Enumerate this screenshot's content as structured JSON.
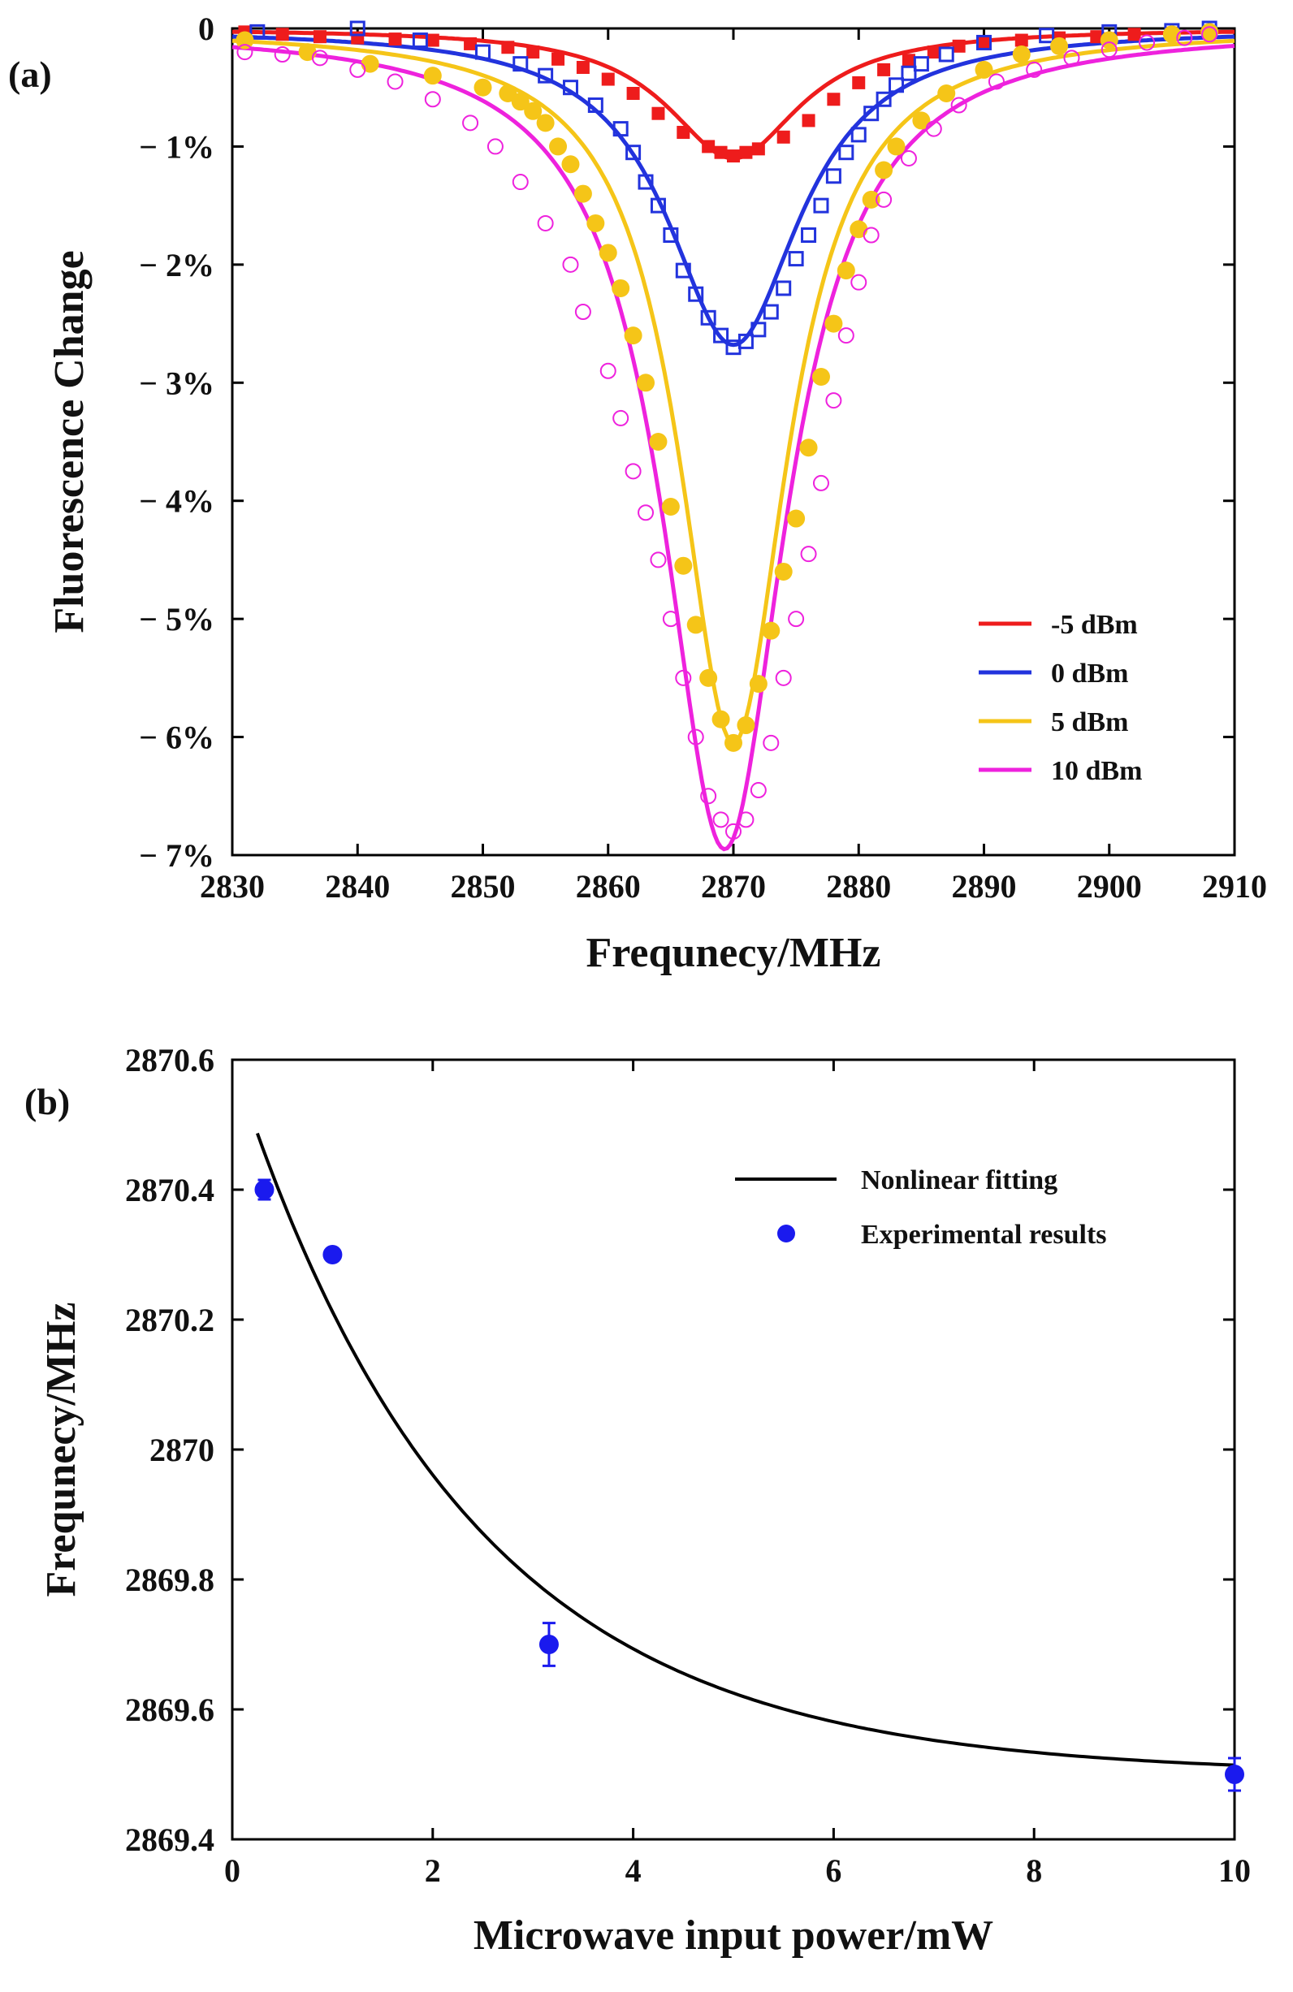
{
  "chart_data": [
    {
      "type": "line",
      "panel_label": "(a)",
      "title": "",
      "xlabel": "Frequnecy/MHz",
      "ylabel": "Fluorescence Change",
      "xlim": [
        2830,
        2910
      ],
      "ylim": [
        -7,
        0
      ],
      "xticks": [
        2830,
        2840,
        2850,
        2860,
        2870,
        2880,
        2890,
        2900,
        2910
      ],
      "yticks": [
        0,
        -1,
        -2,
        -3,
        -4,
        -5,
        -6,
        -7
      ],
      "ytick_labels": [
        "0",
        "− 1%",
        "− 2%",
        "− 3%",
        "− 4%",
        "− 5%",
        "− 6%",
        "− 7%"
      ],
      "legend_position": "bottom-right",
      "series": [
        {
          "name": "-5 dBm",
          "color": "#ee1c1c",
          "marker": "filled-square",
          "fit": {
            "center": 2870,
            "depth": -1.1,
            "hwhm": 6.5,
            "offset": 0.0
          },
          "points": [
            [
              2831,
              -0.03
            ],
            [
              2834,
              -0.05
            ],
            [
              2837,
              -0.07
            ],
            [
              2840,
              -0.08
            ],
            [
              2843,
              -0.09
            ],
            [
              2846,
              -0.1
            ],
            [
              2849,
              -0.13
            ],
            [
              2852,
              -0.16
            ],
            [
              2854,
              -0.2
            ],
            [
              2856,
              -0.26
            ],
            [
              2858,
              -0.33
            ],
            [
              2860,
              -0.43
            ],
            [
              2862,
              -0.55
            ],
            [
              2864,
              -0.72
            ],
            [
              2866,
              -0.88
            ],
            [
              2868,
              -1.0
            ],
            [
              2869,
              -1.05
            ],
            [
              2870,
              -1.08
            ],
            [
              2871,
              -1.05
            ],
            [
              2872,
              -1.02
            ],
            [
              2874,
              -0.92
            ],
            [
              2876,
              -0.78
            ],
            [
              2878,
              -0.6
            ],
            [
              2880,
              -0.46
            ],
            [
              2882,
              -0.35
            ],
            [
              2884,
              -0.27
            ],
            [
              2886,
              -0.2
            ],
            [
              2888,
              -0.15
            ],
            [
              2890,
              -0.12
            ],
            [
              2893,
              -0.1
            ],
            [
              2896,
              -0.08
            ],
            [
              2899,
              -0.07
            ],
            [
              2902,
              -0.05
            ],
            [
              2905,
              -0.04
            ],
            [
              2908,
              -0.03
            ]
          ]
        },
        {
          "name": "0 dBm",
          "color": "#2233dd",
          "marker": "open-square",
          "fit": {
            "center": 2870,
            "depth": -2.68,
            "hwhm": 6.5,
            "offset": 0.0
          },
          "points": [
            [
              2832,
              -0.03
            ],
            [
              2840,
              0.0
            ],
            [
              2845,
              -0.1
            ],
            [
              2850,
              -0.2
            ],
            [
              2853,
              -0.3
            ],
            [
              2855,
              -0.4
            ],
            [
              2857,
              -0.5
            ],
            [
              2859,
              -0.65
            ],
            [
              2861,
              -0.85
            ],
            [
              2862,
              -1.05
            ],
            [
              2863,
              -1.3
            ],
            [
              2864,
              -1.5
            ],
            [
              2865,
              -1.75
            ],
            [
              2866,
              -2.05
            ],
            [
              2867,
              -2.25
            ],
            [
              2868,
              -2.45
            ],
            [
              2869,
              -2.6
            ],
            [
              2870,
              -2.7
            ],
            [
              2871,
              -2.65
            ],
            [
              2872,
              -2.55
            ],
            [
              2873,
              -2.4
            ],
            [
              2874,
              -2.2
            ],
            [
              2875,
              -1.95
            ],
            [
              2876,
              -1.75
            ],
            [
              2877,
              -1.5
            ],
            [
              2878,
              -1.25
            ],
            [
              2879,
              -1.05
            ],
            [
              2880,
              -0.9
            ],
            [
              2881,
              -0.72
            ],
            [
              2882,
              -0.6
            ],
            [
              2883,
              -0.48
            ],
            [
              2884,
              -0.38
            ],
            [
              2885,
              -0.3
            ],
            [
              2887,
              -0.22
            ],
            [
              2890,
              -0.12
            ],
            [
              2895,
              -0.06
            ],
            [
              2900,
              -0.03
            ],
            [
              2905,
              -0.02
            ],
            [
              2908,
              0.0
            ]
          ]
        },
        {
          "name": "5 dBm",
          "color": "#f5c518",
          "marker": "filled-circle",
          "fit": {
            "center": 2870,
            "depth": -6.05,
            "hwhm": 5.3,
            "offset": 0.0
          },
          "points": [
            [
              2831,
              -0.1
            ],
            [
              2836,
              -0.2
            ],
            [
              2841,
              -0.3
            ],
            [
              2846,
              -0.4
            ],
            [
              2850,
              -0.5
            ],
            [
              2852,
              -0.55
            ],
            [
              2853,
              -0.62
            ],
            [
              2854,
              -0.7
            ],
            [
              2855,
              -0.8
            ],
            [
              2856,
              -1.0
            ],
            [
              2857,
              -1.15
            ],
            [
              2858,
              -1.4
            ],
            [
              2859,
              -1.65
            ],
            [
              2860,
              -1.9
            ],
            [
              2861,
              -2.2
            ],
            [
              2862,
              -2.6
            ],
            [
              2863,
              -3.0
            ],
            [
              2864,
              -3.5
            ],
            [
              2865,
              -4.05
            ],
            [
              2866,
              -4.55
            ],
            [
              2867,
              -5.05
            ],
            [
              2868,
              -5.5
            ],
            [
              2869,
              -5.85
            ],
            [
              2870,
              -6.05
            ],
            [
              2871,
              -5.9
            ],
            [
              2872,
              -5.55
            ],
            [
              2873,
              -5.1
            ],
            [
              2874,
              -4.6
            ],
            [
              2875,
              -4.15
            ],
            [
              2876,
              -3.55
            ],
            [
              2877,
              -2.95
            ],
            [
              2878,
              -2.5
            ],
            [
              2879,
              -2.05
            ],
            [
              2880,
              -1.7
            ],
            [
              2881,
              -1.45
            ],
            [
              2882,
              -1.2
            ],
            [
              2883,
              -1.0
            ],
            [
              2885,
              -0.78
            ],
            [
              2887,
              -0.55
            ],
            [
              2890,
              -0.35
            ],
            [
              2893,
              -0.22
            ],
            [
              2896,
              -0.15
            ],
            [
              2900,
              -0.1
            ],
            [
              2905,
              -0.05
            ],
            [
              2908,
              -0.03
            ]
          ]
        },
        {
          "name": "10 dBm",
          "color": "#ee22dd",
          "marker": "open-circle",
          "fit": {
            "center": 2869.3,
            "depth": -6.95,
            "hwhm": 6.0,
            "offset": 0.0
          },
          "points": [
            [
              2831,
              -0.2
            ],
            [
              2834,
              -0.22
            ],
            [
              2837,
              -0.25
            ],
            [
              2840,
              -0.35
            ],
            [
              2843,
              -0.45
            ],
            [
              2846,
              -0.6
            ],
            [
              2849,
              -0.8
            ],
            [
              2851,
              -1.0
            ],
            [
              2853,
              -1.3
            ],
            [
              2855,
              -1.65
            ],
            [
              2857,
              -2.0
            ],
            [
              2858,
              -2.4
            ],
            [
              2860,
              -2.9
            ],
            [
              2861,
              -3.3
            ],
            [
              2862,
              -3.75
            ],
            [
              2863,
              -4.1
            ],
            [
              2864,
              -4.5
            ],
            [
              2865,
              -5.0
            ],
            [
              2866,
              -5.5
            ],
            [
              2867,
              -6.0
            ],
            [
              2868,
              -6.5
            ],
            [
              2869,
              -6.7
            ],
            [
              2870,
              -6.8
            ],
            [
              2871,
              -6.7
            ],
            [
              2872,
              -6.45
            ],
            [
              2873,
              -6.05
            ],
            [
              2874,
              -5.5
            ],
            [
              2875,
              -5.0
            ],
            [
              2876,
              -4.45
            ],
            [
              2877,
              -3.85
            ],
            [
              2878,
              -3.15
            ],
            [
              2879,
              -2.6
            ],
            [
              2880,
              -2.15
            ],
            [
              2881,
              -1.75
            ],
            [
              2882,
              -1.45
            ],
            [
              2884,
              -1.1
            ],
            [
              2886,
              -0.85
            ],
            [
              2888,
              -0.65
            ],
            [
              2891,
              -0.45
            ],
            [
              2894,
              -0.35
            ],
            [
              2897,
              -0.25
            ],
            [
              2900,
              -0.18
            ],
            [
              2903,
              -0.12
            ],
            [
              2906,
              -0.08
            ],
            [
              2908,
              -0.05
            ]
          ]
        }
      ]
    },
    {
      "type": "scatter",
      "panel_label": "(b)",
      "title": "",
      "xlabel": "Microwave input power/mW",
      "ylabel": "Frequnecy/MHz",
      "xlim": [
        0,
        10
      ],
      "ylim": [
        2869.4,
        2870.6
      ],
      "xticks": [
        0,
        2,
        4,
        6,
        8,
        10
      ],
      "yticks": [
        2869.4,
        2869.6,
        2869.8,
        2870,
        2870.2,
        2870.4,
        2870.6
      ],
      "ytick_labels": [
        "2869.4",
        "2869.6",
        "2869.8",
        "2870",
        "2870.2",
        "2870.4",
        "2870.6"
      ],
      "legend_position": "top-right",
      "series": [
        {
          "name": "Nonlinear fitting",
          "type": "line",
          "color": "#000000",
          "fit": {
            "model": "exponential",
            "y0": 2869.5,
            "A": 1.1,
            "tau": 2.3,
            "x_start": 0.25,
            "x_end": 10
          }
        },
        {
          "name": "Experimental results",
          "type": "scatter",
          "color": "#1a1aee",
          "x": [
            0.32,
            1.0,
            3.16,
            10.0
          ],
          "y": [
            2870.4,
            2870.3,
            2869.7,
            2869.5
          ],
          "yerr": [
            0.015,
            0.0,
            0.033,
            0.025
          ]
        }
      ]
    }
  ]
}
